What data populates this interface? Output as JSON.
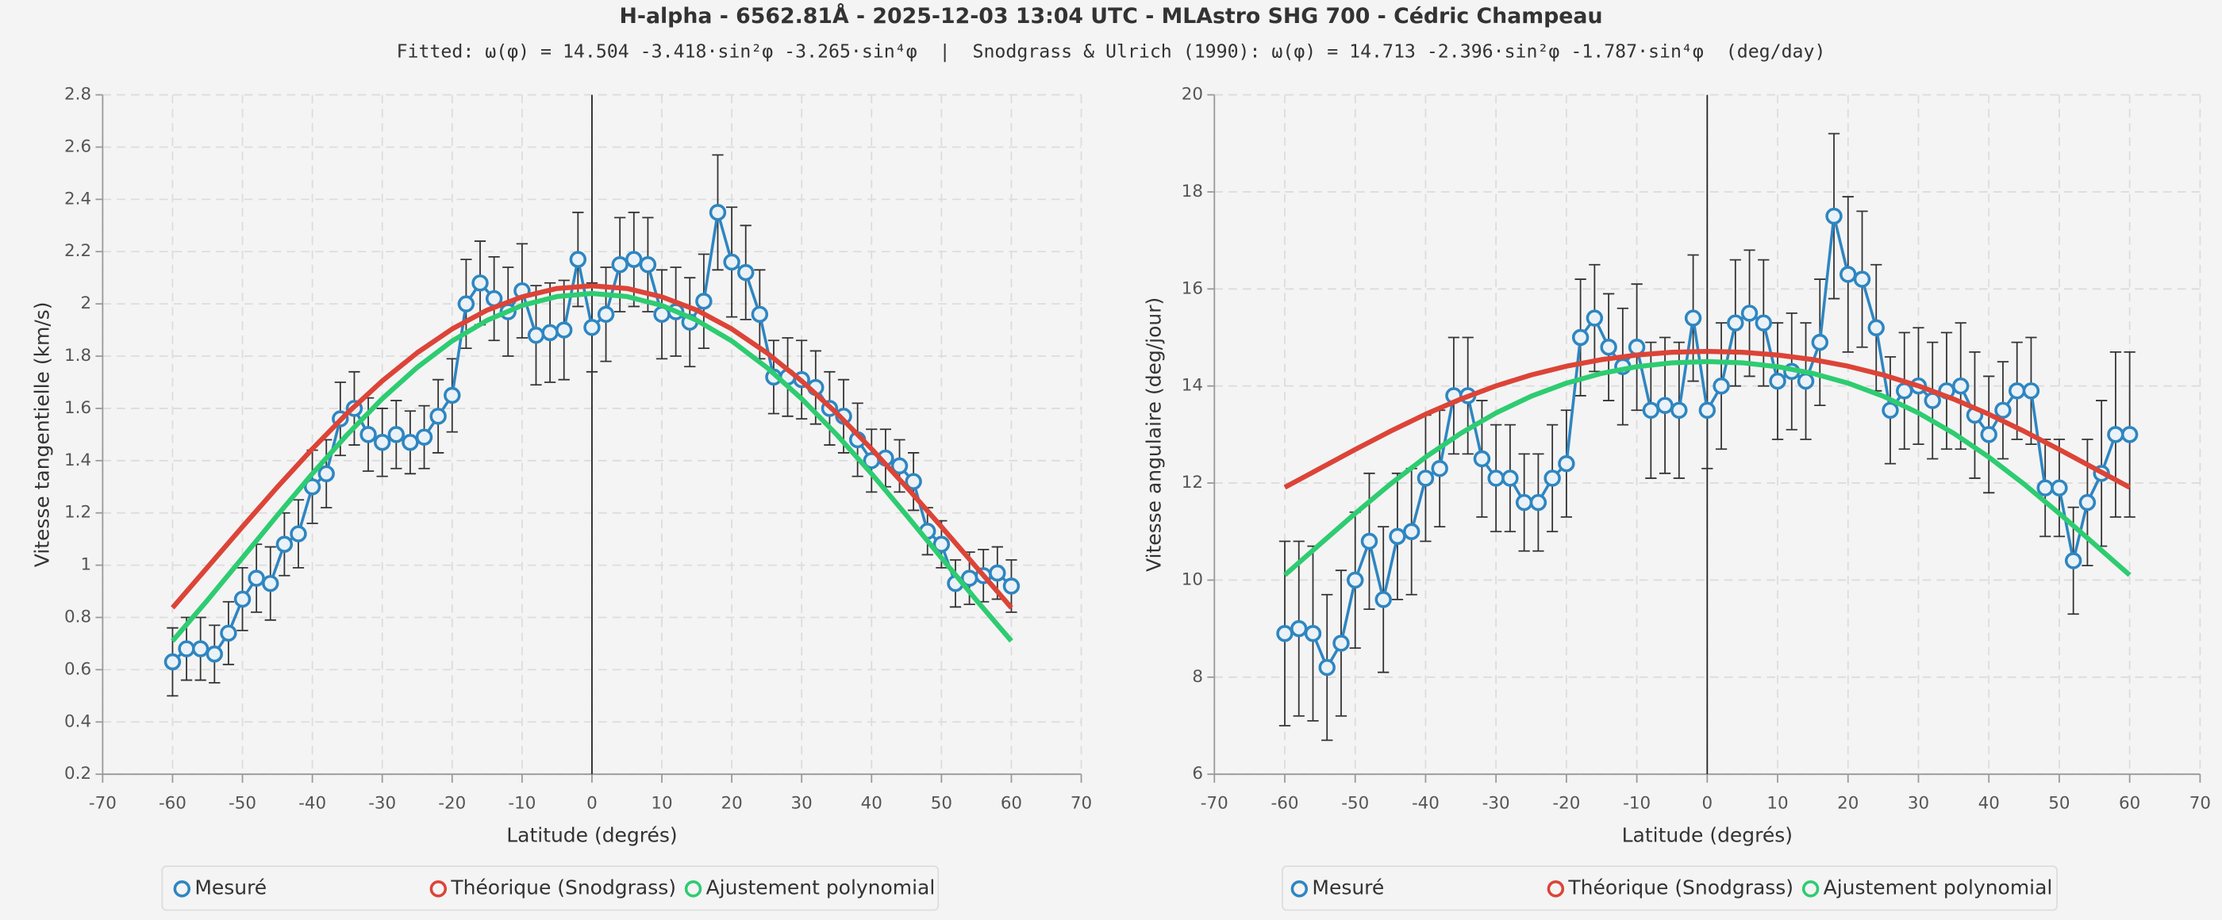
{
  "title": "H-alpha - 6562.81Å - 2025-12-03 13:04 UTC - MLAstro SHG 700 - Cédric Champeau",
  "subtitle": "Fitted: ω(φ) = 14.504 -3.418·sin²φ -3.265·sin⁴φ  |  Snodgrass & Ulrich (1990): ω(φ) = 14.713 -2.396·sin²φ -1.787·sin⁴φ  (deg/day)",
  "chart_data": [
    {
      "type": "line",
      "x_label": "Latitude (degrés)",
      "y_label": "Vitesse tangentielle (km/s)",
      "xlim": [
        -70,
        70
      ],
      "xticks": [
        -70,
        -60,
        -50,
        -40,
        -30,
        -20,
        -10,
        0,
        10,
        20,
        30,
        40,
        50,
        60,
        70
      ],
      "ylim": [
        0.2,
        2.8
      ],
      "yticks": [
        0.2,
        0.4,
        0.6,
        0.8,
        1,
        1.2,
        1.4,
        1.6,
        1.8,
        2,
        2.2,
        2.4,
        2.6,
        2.8
      ],
      "grid": true,
      "legend": "bottom",
      "series": [
        {
          "name": "Mesuré",
          "color": "#2e86c1",
          "x": [
            -60,
            -58,
            -56,
            -54,
            -52,
            -50,
            -48,
            -46,
            -44,
            -42,
            -40,
            -38,
            -36,
            -34,
            -32,
            -30,
            -28,
            -26,
            -24,
            -22,
            -20,
            -18,
            -16,
            -14,
            -12,
            -10,
            -8,
            -6,
            -4,
            -2,
            0,
            2,
            4,
            6,
            8,
            10,
            12,
            14,
            16,
            18,
            20,
            22,
            24,
            26,
            28,
            30,
            32,
            34,
            36,
            38,
            40,
            42,
            44,
            46,
            48,
            50,
            52,
            54,
            56,
            58,
            60
          ],
          "values": [
            0.63,
            0.68,
            0.68,
            0.66,
            0.74,
            0.87,
            0.95,
            0.93,
            1.08,
            1.12,
            1.3,
            1.35,
            1.56,
            1.6,
            1.5,
            1.47,
            1.5,
            1.47,
            1.49,
            1.57,
            1.65,
            2.0,
            2.08,
            2.02,
            1.97,
            2.05,
            1.88,
            1.89,
            1.9,
            2.17,
            1.91,
            1.96,
            2.15,
            2.17,
            2.15,
            1.96,
            1.97,
            1.93,
            2.01,
            2.35,
            2.16,
            2.12,
            1.96,
            1.72,
            1.72,
            1.71,
            1.68,
            1.6,
            1.57,
            1.48,
            1.4,
            1.41,
            1.38,
            1.32,
            1.13,
            1.08,
            0.93,
            0.95,
            0.96,
            0.97,
            0.92
          ],
          "errors": [
            0.13,
            0.12,
            0.12,
            0.11,
            0.12,
            0.12,
            0.13,
            0.14,
            0.12,
            0.13,
            0.14,
            0.13,
            0.14,
            0.14,
            0.14,
            0.13,
            0.13,
            0.12,
            0.12,
            0.14,
            0.14,
            0.17,
            0.16,
            0.16,
            0.17,
            0.18,
            0.19,
            0.19,
            0.19,
            0.18,
            0.17,
            0.18,
            0.18,
            0.18,
            0.18,
            0.17,
            0.17,
            0.17,
            0.18,
            0.22,
            0.21,
            0.18,
            0.17,
            0.14,
            0.15,
            0.15,
            0.14,
            0.14,
            0.14,
            0.14,
            0.12,
            0.11,
            0.1,
            0.11,
            0.09,
            0.09,
            0.09,
            0.1,
            0.1,
            0.1,
            0.1
          ]
        },
        {
          "name": "Théorique (Snodgrass)",
          "color": "#dc4437",
          "x": [
            -60,
            -55,
            -50,
            -45,
            -40,
            -35,
            -30,
            -25,
            -20,
            -15,
            -10,
            -5,
            0,
            5,
            10,
            15,
            20,
            25,
            30,
            35,
            40,
            45,
            50,
            55,
            60
          ],
          "values": [
            0.837,
            0.992,
            1.147,
            1.299,
            1.445,
            1.582,
            1.705,
            1.813,
            1.904,
            1.976,
            2.027,
            2.059,
            2.069,
            2.059,
            2.027,
            1.976,
            1.904,
            1.813,
            1.705,
            1.582,
            1.445,
            1.299,
            1.147,
            0.992,
            0.837
          ]
        },
        {
          "name": "Ajustement polynomial",
          "color": "#2ecc71",
          "x": [
            -60,
            -55,
            -50,
            -45,
            -40,
            -35,
            -30,
            -25,
            -20,
            -15,
            -10,
            -5,
            0,
            5,
            10,
            15,
            20,
            25,
            30,
            35,
            40,
            45,
            50,
            55,
            60
          ],
          "values": [
            0.71,
            0.866,
            1.028,
            1.191,
            1.35,
            1.5,
            1.637,
            1.757,
            1.858,
            1.937,
            1.994,
            2.028,
            2.04,
            2.028,
            1.994,
            1.937,
            1.858,
            1.757,
            1.637,
            1.5,
            1.35,
            1.191,
            1.028,
            0.866,
            0.71
          ]
        }
      ]
    },
    {
      "type": "line",
      "x_label": "Latitude (degrés)",
      "y_label": "Vitesse angulaire (deg/jour)",
      "xlim": [
        -70,
        70
      ],
      "xticks": [
        -70,
        -60,
        -50,
        -40,
        -30,
        -20,
        -10,
        0,
        10,
        20,
        30,
        40,
        50,
        60,
        70
      ],
      "ylim": [
        6,
        20
      ],
      "yticks": [
        6,
        8,
        10,
        12,
        14,
        16,
        18,
        20
      ],
      "grid": true,
      "legend": "bottom",
      "series": [
        {
          "name": "Mesuré",
          "color": "#2e86c1",
          "x": [
            -60,
            -58,
            -56,
            -54,
            -52,
            -50,
            -48,
            -46,
            -44,
            -42,
            -40,
            -38,
            -36,
            -34,
            -32,
            -30,
            -28,
            -26,
            -24,
            -22,
            -20,
            -18,
            -16,
            -14,
            -12,
            -10,
            -8,
            -6,
            -4,
            -2,
            0,
            2,
            4,
            6,
            8,
            10,
            12,
            14,
            16,
            18,
            20,
            22,
            24,
            26,
            28,
            30,
            32,
            34,
            36,
            38,
            40,
            42,
            44,
            46,
            48,
            50,
            52,
            54,
            56,
            58,
            60
          ],
          "values": [
            8.9,
            9.0,
            8.9,
            8.2,
            8.7,
            10.0,
            10.8,
            9.6,
            10.9,
            11.0,
            12.1,
            12.3,
            13.8,
            13.8,
            12.5,
            12.1,
            12.1,
            11.6,
            11.6,
            12.1,
            12.4,
            15.0,
            15.4,
            14.8,
            14.4,
            14.8,
            13.5,
            13.6,
            13.5,
            15.4,
            13.5,
            14.0,
            15.3,
            15.5,
            15.3,
            14.1,
            14.3,
            14.1,
            14.9,
            17.5,
            16.3,
            16.2,
            15.2,
            13.5,
            13.9,
            14.0,
            13.7,
            13.9,
            14.0,
            13.4,
            13.0,
            13.5,
            13.9,
            13.9,
            11.9,
            11.9,
            10.4,
            11.6,
            12.2,
            13.0,
            13.0
          ],
          "errors": [
            1.9,
            1.8,
            1.8,
            1.5,
            1.5,
            1.4,
            1.4,
            1.5,
            1.3,
            1.3,
            1.3,
            1.2,
            1.2,
            1.2,
            1.2,
            1.1,
            1.1,
            1.0,
            1.0,
            1.1,
            1.1,
            1.2,
            1.1,
            1.1,
            1.2,
            1.3,
            1.4,
            1.4,
            1.4,
            1.3,
            1.2,
            1.3,
            1.3,
            1.3,
            1.3,
            1.2,
            1.2,
            1.2,
            1.3,
            1.7,
            1.6,
            1.4,
            1.3,
            1.1,
            1.2,
            1.2,
            1.2,
            1.2,
            1.3,
            1.3,
            1.2,
            1.0,
            1.0,
            1.1,
            1.0,
            1.0,
            1.1,
            1.3,
            1.5,
            1.7,
            1.7
          ]
        },
        {
          "name": "Théorique (Snodgrass)",
          "color": "#dc4437",
          "x": [
            -60,
            -55,
            -50,
            -45,
            -40,
            -35,
            -30,
            -25,
            -20,
            -15,
            -10,
            -5,
            0,
            5,
            10,
            15,
            20,
            25,
            30,
            35,
            40,
            45,
            50,
            55,
            60
          ],
          "values": [
            11.911,
            12.301,
            12.692,
            13.068,
            13.418,
            13.731,
            14.002,
            14.228,
            14.408,
            14.544,
            14.639,
            14.695,
            14.713,
            14.695,
            14.639,
            14.544,
            14.408,
            14.228,
            14.002,
            13.731,
            13.418,
            13.068,
            12.692,
            12.301,
            11.911
          ]
        },
        {
          "name": "Ajustement polynomial",
          "color": "#2ecc71",
          "x": [
            -60,
            -55,
            -50,
            -45,
            -40,
            -35,
            -30,
            -25,
            -20,
            -15,
            -10,
            -5,
            0,
            5,
            10,
            15,
            20,
            25,
            30,
            35,
            40,
            45,
            50,
            55,
            60
          ],
          "values": [
            10.104,
            10.74,
            11.374,
            11.979,
            12.534,
            13.026,
            13.445,
            13.789,
            14.059,
            14.26,
            14.398,
            14.478,
            14.504,
            14.478,
            14.398,
            14.26,
            14.059,
            13.789,
            13.445,
            13.026,
            12.534,
            11.979,
            11.374,
            10.74,
            10.104
          ]
        }
      ]
    }
  ]
}
